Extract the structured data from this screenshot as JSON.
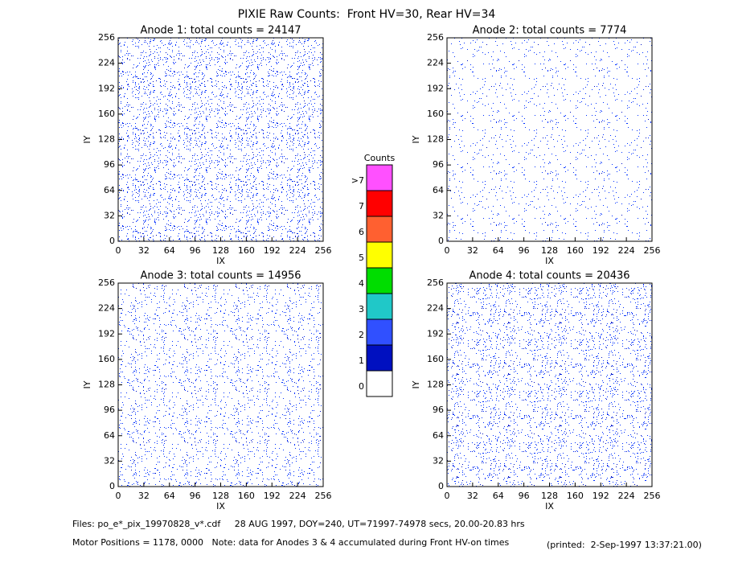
{
  "title": "PIXIE Raw Counts:  Front HV=30, Rear HV=34",
  "chart_data": [
    {
      "type": "image",
      "title": "Anode 1: total counts = 24147",
      "xlabel": "IX",
      "ylabel": "IY",
      "xlim": [
        0,
        256
      ],
      "ylim": [
        0,
        256
      ],
      "xticks": [
        0,
        32,
        64,
        96,
        128,
        160,
        192,
        224,
        256
      ],
      "yticks": [
        0,
        32,
        64,
        96,
        128,
        160,
        192,
        224,
        256
      ]
    },
    {
      "type": "image",
      "title": "Anode 2: total counts = 7774",
      "xlabel": "IX",
      "ylabel": "IY",
      "xlim": [
        0,
        256
      ],
      "ylim": [
        0,
        256
      ],
      "xticks": [
        0,
        32,
        64,
        96,
        128,
        160,
        192,
        224,
        256
      ],
      "yticks": [
        0,
        32,
        64,
        96,
        128,
        160,
        192,
        224,
        256
      ]
    },
    {
      "type": "image",
      "title": "Anode 3: total counts = 14956",
      "xlabel": "IX",
      "ylabel": "IY",
      "xlim": [
        0,
        256
      ],
      "ylim": [
        0,
        256
      ],
      "xticks": [
        0,
        32,
        64,
        96,
        128,
        160,
        192,
        224,
        256
      ],
      "yticks": [
        0,
        32,
        64,
        96,
        128,
        160,
        192,
        224,
        256
      ]
    },
    {
      "type": "image",
      "title": "Anode 4: total counts = 20436",
      "xlabel": "IX",
      "ylabel": "IY",
      "xlim": [
        0,
        256
      ],
      "ylim": [
        0,
        256
      ],
      "xticks": [
        0,
        32,
        64,
        96,
        128,
        160,
        192,
        224,
        256
      ],
      "yticks": [
        0,
        32,
        64,
        96,
        128,
        160,
        192,
        224,
        256
      ]
    }
  ],
  "colorbar": {
    "title": "Counts",
    "labels": [
      ">7",
      "7",
      "6",
      "5",
      "4",
      "3",
      "2",
      "1",
      "0"
    ],
    "colors": [
      "#ff50ff",
      "#ff0000",
      "#ff6030",
      "#ffff00",
      "#00dd00",
      "#20c8c8",
      "#3050ff",
      "#0010c0",
      "#ffffff"
    ]
  },
  "footer": {
    "files": "Files: po_e*_pix_19970828_v*.cdf     28 AUG 1997, DOY=240, UT=71997-74978 secs, 20.00-20.83 hrs",
    "motor": "Motor Positions = 1178, 0000   Note: data for Anodes 3 & 4 accumulated during Front HV-on times",
    "printed": "(printed:  2-Sep-1997 13:37:21.00)"
  }
}
